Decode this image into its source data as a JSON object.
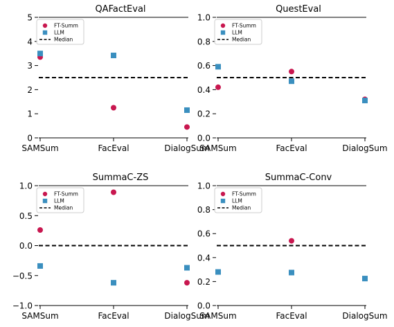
{
  "chart_data": [
    {
      "type": "scatter",
      "title": "QAFactEval",
      "categories": [
        "SAMSum",
        "FacEval",
        "DialogSum"
      ],
      "ylim": [
        0,
        5
      ],
      "yticks": [
        "0",
        "1",
        "2",
        "3",
        "4",
        "5"
      ],
      "ytick_values": [
        0,
        1,
        2,
        3,
        4,
        5
      ],
      "median": 2.5,
      "series": [
        {
          "name": "FT-Summ",
          "marker": "circle",
          "color": "#c8174f",
          "values": [
            3.35,
            1.25,
            0.45
          ]
        },
        {
          "name": "LLM",
          "marker": "square",
          "color": "#3a8fbf",
          "values": [
            3.5,
            3.42,
            1.15
          ]
        }
      ],
      "median_label": "Median",
      "legend": "top-left"
    },
    {
      "type": "scatter",
      "title": "QuestEval",
      "categories": [
        "SAMSum",
        "FacEval",
        "DialogSum"
      ],
      "ylim": [
        0,
        1
      ],
      "yticks": [
        "0.0",
        "0.2",
        "0.4",
        "0.6",
        "0.8",
        "1.0"
      ],
      "ytick_values": [
        0,
        0.2,
        0.4,
        0.6,
        0.8,
        1.0
      ],
      "median": 0.5,
      "series": [
        {
          "name": "FT-Summ",
          "marker": "circle",
          "color": "#c8174f",
          "values": [
            0.42,
            0.55,
            0.32
          ]
        },
        {
          "name": "LLM",
          "marker": "square",
          "color": "#3a8fbf",
          "values": [
            0.59,
            0.47,
            0.31
          ]
        }
      ],
      "median_label": "Median",
      "legend": "top-left"
    },
    {
      "type": "scatter",
      "title": "SummaC-ZS",
      "categories": [
        "SAMSum",
        "FacEval",
        "DialogSum"
      ],
      "ylim": [
        -1,
        1
      ],
      "yticks": [
        "−1.0",
        "−0.5",
        "0.0",
        "0.5",
        "1.0"
      ],
      "ytick_values": [
        -1,
        -0.5,
        0,
        0.5,
        1.0
      ],
      "median": 0,
      "series": [
        {
          "name": "FT-Summ",
          "marker": "circle",
          "color": "#c8174f",
          "values": [
            0.26,
            0.89,
            -0.62
          ]
        },
        {
          "name": "LLM",
          "marker": "square",
          "color": "#3a8fbf",
          "values": [
            -0.34,
            -0.62,
            -0.37
          ]
        }
      ],
      "median_label": "Median",
      "legend": "top-left"
    },
    {
      "type": "scatter",
      "title": "SummaC-Conv",
      "categories": [
        "SAMSum",
        "FacEval",
        "DialogSum"
      ],
      "ylim": [
        0,
        1
      ],
      "yticks": [
        "0.0",
        "0.2",
        "0.4",
        "0.6",
        "0.8",
        "1.0"
      ],
      "ytick_values": [
        0,
        0.2,
        0.4,
        0.6,
        0.8,
        1.0
      ],
      "median": 0.5,
      "series": [
        {
          "name": "FT-Summ",
          "marker": "circle",
          "color": "#c8174f",
          "values": [
            null,
            0.54,
            null
          ]
        },
        {
          "name": "LLM",
          "marker": "square",
          "color": "#3a8fbf",
          "values": [
            0.28,
            0.275,
            0.225
          ]
        }
      ],
      "median_label": "Median",
      "legend": "top-left"
    }
  ]
}
